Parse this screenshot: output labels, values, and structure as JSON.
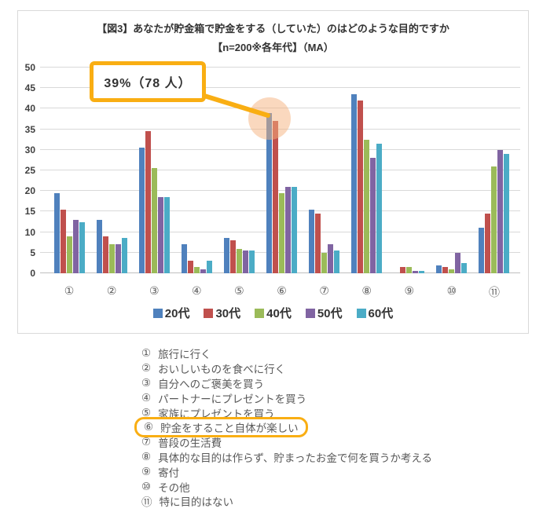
{
  "chart_data": {
    "type": "bar",
    "title": "【図3】あなたが貯金箱で貯金をする（していた）のはどのような目的ですか",
    "subtitle": "【n=200※各年代】（MA）",
    "categories": [
      "①",
      "②",
      "③",
      "④",
      "⑤",
      "⑥",
      "⑦",
      "⑧",
      "⑨",
      "⑩",
      "⑪"
    ],
    "series": [
      {
        "name": "20代",
        "color": "#4F81BD",
        "values": [
          19.5,
          13,
          30.5,
          7,
          8.5,
          39,
          15.5,
          43.5,
          0,
          2,
          11
        ]
      },
      {
        "name": "30代",
        "color": "#C0504D",
        "values": [
          15.5,
          9,
          34.5,
          3,
          8,
          37,
          14.5,
          42,
          1.5,
          1.5,
          14.5
        ]
      },
      {
        "name": "40代",
        "color": "#9BBB59",
        "values": [
          9,
          7,
          25.5,
          1.5,
          6,
          19.5,
          5,
          32.5,
          1.5,
          1,
          26
        ]
      },
      {
        "name": "50代",
        "color": "#8064A2",
        "values": [
          13,
          7,
          18.5,
          1,
          5.5,
          21,
          7,
          28,
          0.5,
          5,
          30
        ]
      },
      {
        "name": "60代",
        "color": "#4BACC6",
        "values": [
          12.5,
          8.5,
          18.5,
          3,
          5.5,
          21,
          5.5,
          31.5,
          0.5,
          2.5,
          29
        ]
      }
    ],
    "ylim": [
      0,
      50
    ],
    "ytick_step": 5,
    "grid": true,
    "legend_position": "bottom",
    "annotation": {
      "text": "39%（78 人）",
      "target_category": "⑥",
      "target_series": "20代",
      "target_value": 39,
      "accent_color": "#F9AE13",
      "highlight_circle_color": "#F6B27D"
    }
  },
  "option_list": {
    "items": [
      {
        "num": "①",
        "label": "旅行に行く",
        "highlighted": false
      },
      {
        "num": "②",
        "label": "おいしいものを食べに行く",
        "highlighted": false
      },
      {
        "num": "③",
        "label": "自分へのご褒美を買う",
        "highlighted": false
      },
      {
        "num": "④",
        "label": "パートナーにプレゼントを買う",
        "highlighted": false
      },
      {
        "num": "⑤",
        "label": "家族にプレゼントを買う",
        "highlighted": false
      },
      {
        "num": "⑥",
        "label": "貯金をすること自体が楽しい",
        "highlighted": true
      },
      {
        "num": "⑦",
        "label": "普段の生活費",
        "highlighted": false
      },
      {
        "num": "⑧",
        "label": "具体的な目的は作らず、貯まったお金で何を買うか考える",
        "highlighted": false
      },
      {
        "num": "⑨",
        "label": "寄付",
        "highlighted": false
      },
      {
        "num": "⑩",
        "label": "その他",
        "highlighted": false
      },
      {
        "num": "⑪",
        "label": "特に目的はない",
        "highlighted": false
      }
    ]
  }
}
